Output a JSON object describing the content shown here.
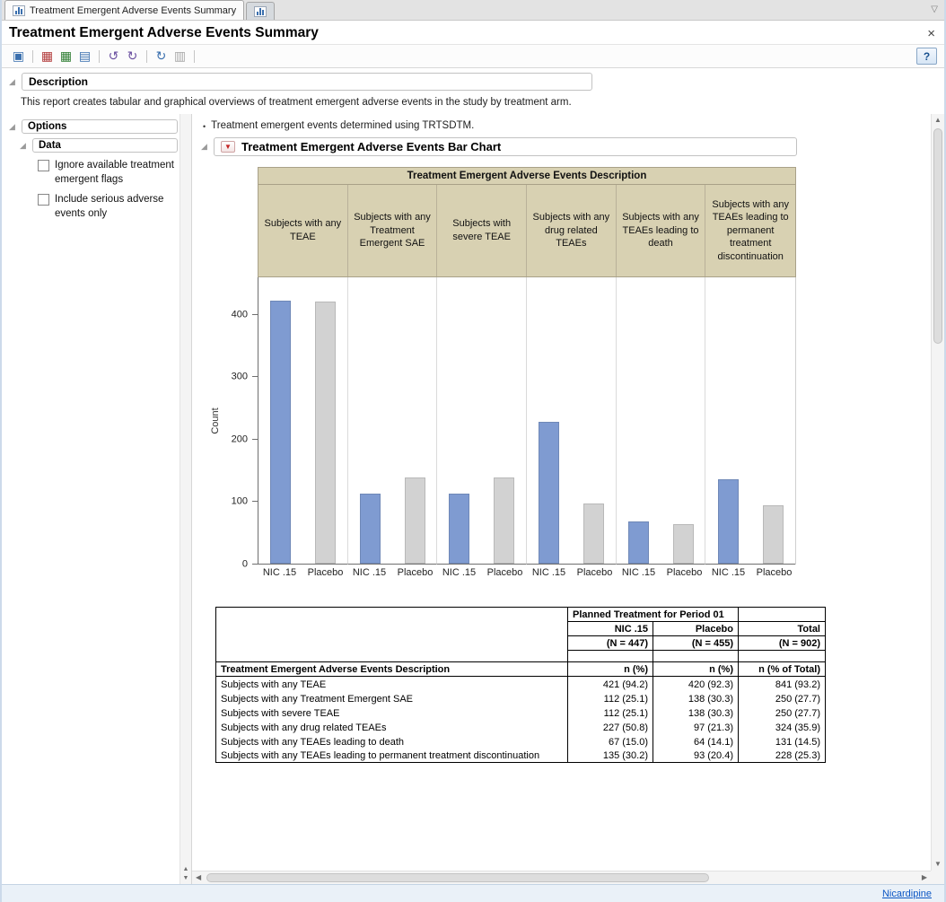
{
  "window": {
    "title": "Treatment Emergent Adverse Events Summary",
    "tabs": [
      {
        "label": "Treatment Emergent Adverse Events Summary",
        "active": true
      },
      {
        "label": "",
        "active": false
      }
    ]
  },
  "icons": {
    "disclosure": "◢",
    "red_triangle": "▼",
    "dropdown": "▽",
    "close": "×",
    "bullet": "•",
    "scroll_up": "▲",
    "scroll_down": "▼",
    "scroll_left": "◀",
    "scroll_right": "▶"
  },
  "toolbar": {
    "help_label": "?",
    "icons": [
      {
        "name": "new-report-icon",
        "glyph": "▣",
        "color": "#3a6fae",
        "sep_after": true
      },
      {
        "name": "data-table-icon",
        "glyph": "▦",
        "color": "#b23b3b",
        "sep_after": false
      },
      {
        "name": "summary-table-icon",
        "glyph": "▦",
        "color": "#2e7d32",
        "sep_after": false
      },
      {
        "name": "export-report-icon",
        "glyph": "▤",
        "color": "#3a6fae",
        "sep_after": true
      },
      {
        "name": "update-data-icon",
        "glyph": "↺",
        "color": "#6a4fa0",
        "sep_after": false
      },
      {
        "name": "rerun-report-icon",
        "glyph": "↻",
        "color": "#6a4fa0",
        "sep_after": true
      },
      {
        "name": "refresh-icon",
        "glyph": "↻",
        "color": "#3a6fae",
        "sep_after": false
      },
      {
        "name": "chart-options-icon",
        "glyph": "▥",
        "color": "#a8a8a8",
        "sep_after": true
      }
    ]
  },
  "description": {
    "header": "Description",
    "text": "This report creates tabular and graphical overviews of treatment emergent adverse events in the study by treatment arm."
  },
  "sidebar": {
    "options_header": "Options",
    "data_header": "Data",
    "checkboxes": [
      {
        "label": "Ignore available treatment emergent flags",
        "checked": false
      },
      {
        "label": "Include serious adverse events only",
        "checked": false
      }
    ]
  },
  "main": {
    "note": "Treatment emergent events determined using TRTSDTM.",
    "section_title": "Treatment Emergent Adverse Events Bar Chart"
  },
  "chart_data": {
    "type": "bar",
    "title": "Treatment Emergent Adverse Events Description",
    "ylabel": "Count",
    "ylim": [
      0,
      460
    ],
    "yticks": [
      0,
      100,
      200,
      300,
      400
    ],
    "grid": false,
    "legend": "none",
    "header_fill": "#d8d1b2",
    "categories": [
      "Subjects with any TEAE",
      "Subjects with any Treatment Emergent SAE",
      "Subjects with severe TEAE",
      "Subjects with any drug related TEAEs",
      "Subjects with any TEAEs leading to death",
      "Subjects with any TEAEs leading to permanent treatment discontinuation"
    ],
    "x_tick_labels": [
      "NIC .15",
      "Placebo"
    ],
    "series": [
      {
        "name": "NIC .15",
        "color": "#7f9bd1",
        "values": [
          421,
          112,
          112,
          227,
          67,
          135
        ]
      },
      {
        "name": "Placebo",
        "color": "#d2d2d2",
        "values": [
          420,
          138,
          138,
          97,
          64,
          93
        ]
      }
    ]
  },
  "table": {
    "group_header": "Planned Treatment for Period 01",
    "columns": [
      {
        "name": "NIC .15",
        "n_label": "(N = 447)",
        "stat_label": "n (%)"
      },
      {
        "name": "Placebo",
        "n_label": "(N = 455)",
        "stat_label": "n (%)"
      },
      {
        "name": "Total",
        "n_label": "(N = 902)",
        "stat_label": "n (% of Total)"
      }
    ],
    "row_label_header": "Treatment Emergent Adverse Events Description",
    "rows": [
      {
        "label": "Subjects with any TEAE",
        "values": [
          "421 (94.2)",
          "420 (92.3)",
          "841 (93.2)"
        ]
      },
      {
        "label": "Subjects with any Treatment Emergent SAE",
        "values": [
          "112 (25.1)",
          "138 (30.3)",
          "250 (27.7)"
        ]
      },
      {
        "label": "Subjects with severe TEAE",
        "values": [
          "112 (25.1)",
          "138 (30.3)",
          "250 (27.7)"
        ]
      },
      {
        "label": "Subjects with any drug related TEAEs",
        "values": [
          "227 (50.8)",
          "97 (21.3)",
          "324 (35.9)"
        ]
      },
      {
        "label": "Subjects with any TEAEs leading to death",
        "values": [
          "67 (15.0)",
          "64 (14.1)",
          "131 (14.5)"
        ]
      },
      {
        "label": "Subjects with any TEAEs leading to permanent treatment discontinuation",
        "values": [
          "135 (30.2)",
          "93 (20.4)",
          "228 (25.3)"
        ]
      }
    ]
  },
  "footer": {
    "link_label": "Nicardipine"
  }
}
